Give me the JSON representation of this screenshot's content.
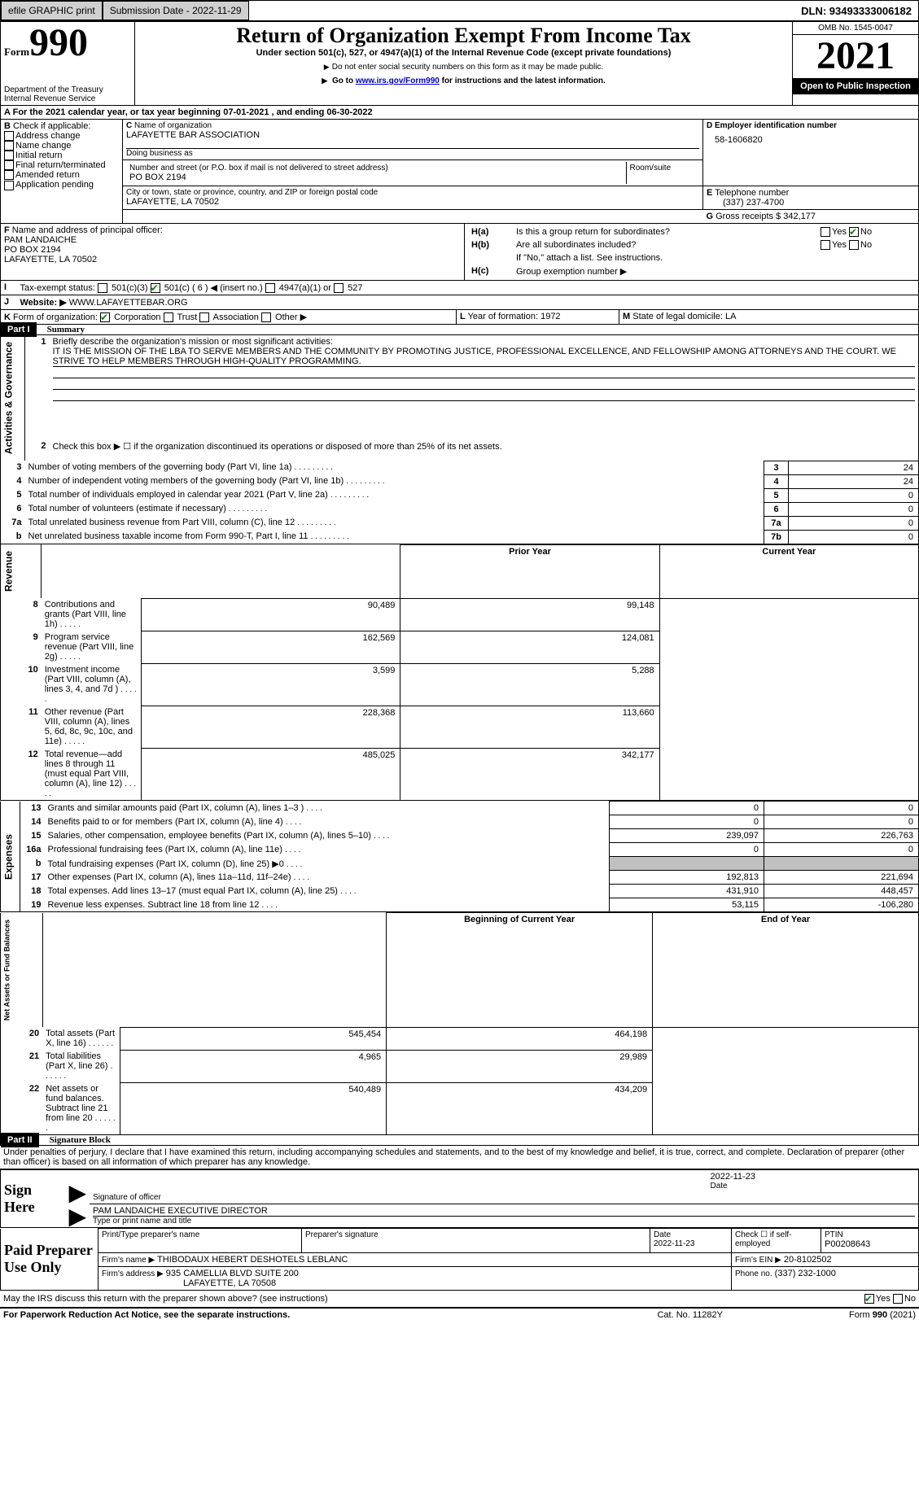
{
  "topbar": {
    "efile": "efile GRAPHIC print",
    "submission": "Submission Date - 2022-11-29",
    "dln": "DLN: 93493333006182"
  },
  "header": {
    "form_word": "Form",
    "form_num": "990",
    "dept": "Department of the Treasury",
    "irs": "Internal Revenue Service",
    "title": "Return of Organization Exempt From Income Tax",
    "subtitle": "Under section 501(c), 527, or 4947(a)(1) of the Internal Revenue Code (except private foundations)",
    "note1": "Do not enter social security numbers on this form as it may be made public.",
    "note2_a": "Go to ",
    "note2_link": "www.irs.gov/Form990",
    "note2_b": " for instructions and the latest information.",
    "omb": "OMB No. 1545-0047",
    "year": "2021",
    "open": "Open to Public Inspection"
  },
  "periodA": {
    "text_a": "For the 2021 calendar year, or tax year beginning ",
    "begin": "07-01-2021",
    "text_b": " , and ending ",
    "end": "06-30-2022"
  },
  "checkB": {
    "label": "Check if applicable:",
    "items": [
      "Address change",
      "Name change",
      "Initial return",
      "Final return/terminated",
      "Amended return",
      "Application pending"
    ]
  },
  "orgC": {
    "name_lbl": "Name of organization",
    "name": "LAFAYETTE BAR ASSOCIATION",
    "dba_lbl": "Doing business as",
    "street_lbl": "Number and street (or P.O. box if mail is not delivered to street address)",
    "room_lbl": "Room/suite",
    "street": "PO BOX 2194",
    "city_lbl": "City or town, state or province, country, and ZIP or foreign postal code",
    "city": "LAFAYETTE, LA  70502"
  },
  "ein": {
    "lbl": "Employer identification number",
    "val": "58-1606820"
  },
  "tel": {
    "lbl": "Telephone number",
    "val": "(337) 237-4700"
  },
  "gross": {
    "lbl": "Gross receipts $",
    "val": "342,177"
  },
  "officerF": {
    "lbl": "Name and address of principal officer:",
    "name": "PAM LANDAICHE",
    "street": "PO BOX 2194",
    "city": "LAFAYETTE, LA  70502"
  },
  "groupH": {
    "ha": "Is this a group return for subordinates?",
    "hb": "Are all subordinates included?",
    "hb_note": "If \"No,\" attach a list. See instructions.",
    "hc": "Group exemption number ▶",
    "yes": "Yes",
    "no": "No"
  },
  "status": {
    "lbl": "Tax-exempt status:",
    "opts": [
      "501(c)(3)",
      "501(c) ( 6 ) ◀ (insert no.)",
      "4947(a)(1) or",
      "527"
    ]
  },
  "website": {
    "lbl": "Website: ▶",
    "val": "WWW.LAFAYETTEBAR.ORG"
  },
  "formK": {
    "lbl": "Form of organization:",
    "opts": [
      "Corporation",
      "Trust",
      "Association",
      "Other ▶"
    ]
  },
  "yearL": {
    "lbl": "Year of formation:",
    "val": "1972"
  },
  "stateM": {
    "lbl": "State of legal domicile:",
    "val": "LA"
  },
  "part1": {
    "num": "Part I",
    "title": "Summary"
  },
  "mission": {
    "lbl": "Briefly describe the organization's mission or most significant activities:",
    "text": "IT IS THE MISSION OF THE LBA TO SERVE MEMBERS AND THE COMMUNITY BY PROMOTING JUSTICE, PROFESSIONAL EXCELLENCE, AND FELLOWSHIP AMONG ATTORNEYS AND THE COURT. WE STRIVE TO HELP MEMBERS THROUGH HIGH-QUALITY PROGRAMMING."
  },
  "line2": "Check this box ▶ ☐ if the organization discontinued its operations or disposed of more than 25% of its net assets.",
  "sections": {
    "activities": "Activities & Governance",
    "revenue": "Revenue",
    "expenses": "Expenses",
    "netassets": "Net Assets or Fund Balances"
  },
  "rows_gov": [
    {
      "n": "3",
      "t": "Number of voting members of the governing body (Part VI, line 1a)",
      "v": "24"
    },
    {
      "n": "4",
      "t": "Number of independent voting members of the governing body (Part VI, line 1b)",
      "v": "24"
    },
    {
      "n": "5",
      "t": "Total number of individuals employed in calendar year 2021 (Part V, line 2a)",
      "v": "0"
    },
    {
      "n": "6",
      "t": "Total number of volunteers (estimate if necessary)",
      "v": "0"
    },
    {
      "n": "7a",
      "t": "Total unrelated business revenue from Part VIII, column (C), line 12",
      "v": "0"
    },
    {
      "n": "b",
      "t": "Net unrelated business taxable income from Form 990-T, Part I, line 11",
      "ln": "7b",
      "v": "0"
    }
  ],
  "col_hdr": {
    "prior": "Prior Year",
    "current": "Current Year",
    "begin": "Beginning of Current Year",
    "end": "End of Year"
  },
  "rows_rev": [
    {
      "n": "8",
      "t": "Contributions and grants (Part VIII, line 1h)",
      "p": "90,489",
      "c": "99,148"
    },
    {
      "n": "9",
      "t": "Program service revenue (Part VIII, line 2g)",
      "p": "162,569",
      "c": "124,081"
    },
    {
      "n": "10",
      "t": "Investment income (Part VIII, column (A), lines 3, 4, and 7d )",
      "p": "3,599",
      "c": "5,288"
    },
    {
      "n": "11",
      "t": "Other revenue (Part VIII, column (A), lines 5, 6d, 8c, 9c, 10c, and 11e)",
      "p": "228,368",
      "c": "113,660"
    },
    {
      "n": "12",
      "t": "Total revenue—add lines 8 through 11 (must equal Part VIII, column (A), line 12)",
      "p": "485,025",
      "c": "342,177"
    }
  ],
  "rows_exp": [
    {
      "n": "13",
      "t": "Grants and similar amounts paid (Part IX, column (A), lines 1–3 )",
      "p": "0",
      "c": "0"
    },
    {
      "n": "14",
      "t": "Benefits paid to or for members (Part IX, column (A), line 4)",
      "p": "0",
      "c": "0"
    },
    {
      "n": "15",
      "t": "Salaries, other compensation, employee benefits (Part IX, column (A), lines 5–10)",
      "p": "239,097",
      "c": "226,763"
    },
    {
      "n": "16a",
      "t": "Professional fundraising fees (Part IX, column (A), line 11e)",
      "p": "0",
      "c": "0"
    },
    {
      "n": "b",
      "t": "Total fundraising expenses (Part IX, column (D), line 25) ▶0",
      "p": "",
      "c": "",
      "grey": true
    },
    {
      "n": "17",
      "t": "Other expenses (Part IX, column (A), lines 11a–11d, 11f–24e)",
      "p": "192,813",
      "c": "221,694"
    },
    {
      "n": "18",
      "t": "Total expenses. Add lines 13–17 (must equal Part IX, column (A), line 25)",
      "p": "431,910",
      "c": "448,457"
    },
    {
      "n": "19",
      "t": "Revenue less expenses. Subtract line 18 from line 12",
      "p": "53,115",
      "c": "-106,280"
    }
  ],
  "rows_net": [
    {
      "n": "20",
      "t": "Total assets (Part X, line 16)",
      "p": "545,454",
      "c": "464,198"
    },
    {
      "n": "21",
      "t": "Total liabilities (Part X, line 26)",
      "p": "4,965",
      "c": "29,989"
    },
    {
      "n": "22",
      "t": "Net assets or fund balances. Subtract line 21 from line 20",
      "p": "540,489",
      "c": "434,209"
    }
  ],
  "part2": {
    "num": "Part II",
    "title": "Signature Block"
  },
  "penalty": "Under penalties of perjury, I declare that I have examined this return, including accompanying schedules and statements, and to the best of my knowledge and belief, it is true, correct, and complete. Declaration of preparer (other than officer) is based on all information of which preparer has any knowledge.",
  "sign": {
    "lbl": "Sign Here",
    "sig_lbl": "Signature of officer",
    "date_lbl": "Date",
    "date_val": "2022-11-23",
    "name": "PAM LANDAICHE  EXECUTIVE DIRECTOR",
    "name_lbl": "Type or print name and title"
  },
  "preparer": {
    "lbl": "Paid Preparer Use Only",
    "print_lbl": "Print/Type preparer's name",
    "sig_lbl": "Preparer's signature",
    "date_lbl": "Date",
    "date_val": "2022-11-23",
    "check_lbl": "Check ☐ if self-employed",
    "ptin_lbl": "PTIN",
    "ptin": "P00208643",
    "firm_lbl": "Firm's name  ▶",
    "firm": "THIBODAUX HEBERT DESHOTELS LEBLANC",
    "ein_lbl": "Firm's EIN ▶",
    "ein": "20-8102502",
    "addr_lbl": "Firm's address ▶",
    "addr1": "935 CAMELLIA BLVD SUITE 200",
    "addr2": "LAFAYETTE, LA  70508",
    "phone_lbl": "Phone no.",
    "phone": "(337) 232-1000"
  },
  "discuss": {
    "q": "May the IRS discuss this return with the preparer shown above? (see instructions)",
    "yes": "Yes",
    "no": "No"
  },
  "footer": {
    "left": "For Paperwork Reduction Act Notice, see the separate instructions.",
    "cat": "Cat. No. 11282Y",
    "right": "Form 990 (2021)"
  },
  "labels": {
    "A": "A",
    "B": "B",
    "C": "C",
    "D": "D",
    "E": "E",
    "F": "F",
    "G": "G",
    "H_a": "H(a)",
    "H_b": "H(b)",
    "H_c": "H(c)",
    "I": "I",
    "J": "J",
    "K": "K",
    "L": "L",
    "M": "M"
  }
}
